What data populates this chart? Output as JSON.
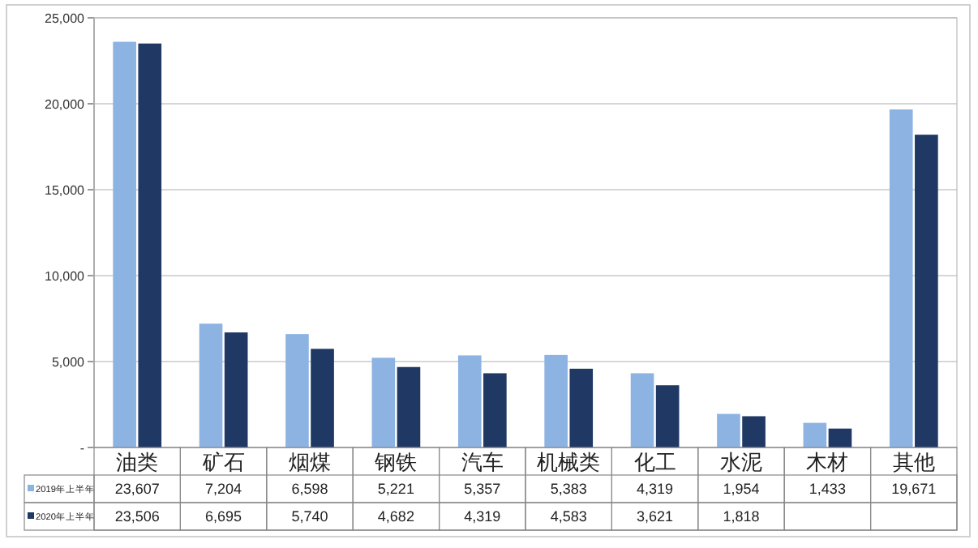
{
  "chart_data": {
    "type": "bar",
    "categories": [
      "油类",
      "矿石",
      "烟煤",
      "钢铁",
      "汽车",
      "机械类",
      "化工",
      "水泥",
      "木材",
      "其他"
    ],
    "series": [
      {
        "name": "2019年上半年",
        "color": "#8db3e2",
        "values": [
          23607,
          7204,
          6598,
          5221,
          5357,
          5383,
          4319,
          1954,
          1433,
          19671
        ],
        "value_labels": [
          "23,607",
          "7,204",
          "6,598",
          "5,221",
          "5,357",
          "5,383",
          "4,319",
          "1,954",
          "1,433",
          "19,671"
        ]
      },
      {
        "name": "2020年上半年",
        "color": "#1f3864",
        "values": [
          23506,
          6695,
          5740,
          4682,
          4319,
          4583,
          3621,
          1818,
          1100,
          18200
        ],
        "value_labels": [
          "23,506",
          "6,695",
          "5,740",
          "4,682",
          "4,319",
          "4,583",
          "3,621",
          "1,818",
          null,
          null
        ]
      }
    ],
    "ylim": [
      0,
      25000
    ],
    "yticks": [
      {
        "value": 0,
        "label": "-"
      },
      {
        "value": 5000,
        "label": "5,000"
      },
      {
        "value": 10000,
        "label": "10,000"
      },
      {
        "value": 15000,
        "label": "15,000"
      },
      {
        "value": 20000,
        "label": "20,000"
      },
      {
        "value": 25000,
        "label": "25,000"
      }
    ],
    "grid": "y",
    "legend": "bottom left"
  }
}
